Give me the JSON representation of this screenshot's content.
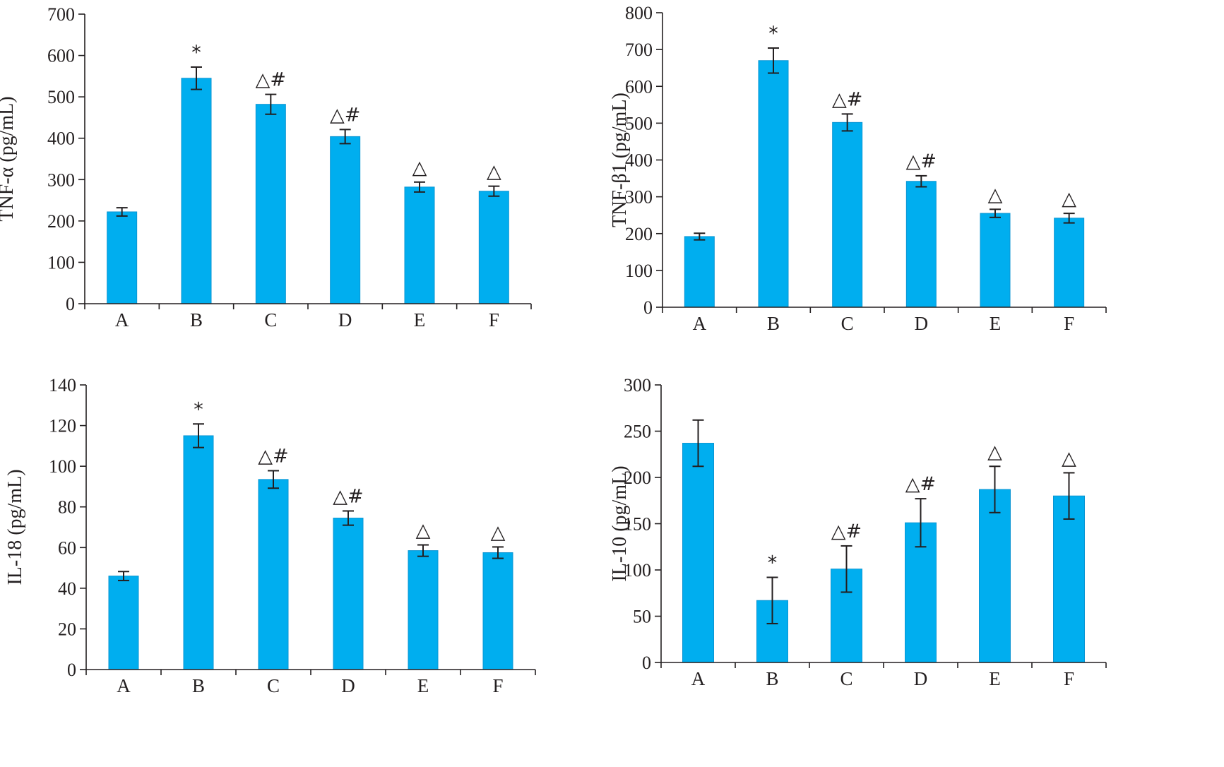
{
  "colors": {
    "bar": "#00aeef",
    "axis": "#231f20"
  },
  "chart_data": [
    {
      "type": "bar",
      "ylabel": "TNF-α (pg/mL)",
      "categories": [
        "A",
        "B",
        "C",
        "D",
        "E",
        "F"
      ],
      "values": [
        222,
        545,
        482,
        404,
        282,
        272
      ],
      "errors": [
        10,
        27,
        24,
        17,
        12,
        12
      ],
      "annotations": [
        "",
        "*",
        "△#",
        "△#",
        "△",
        "△"
      ],
      "ylim": [
        0,
        700
      ],
      "yticks": [
        0,
        100,
        200,
        300,
        400,
        500,
        600,
        700
      ],
      "grid": false,
      "legend": "none"
    },
    {
      "type": "bar",
      "ylabel": "TNF-β1 (pg/mL)",
      "categories": [
        "A",
        "B",
        "C",
        "D",
        "E",
        "F"
      ],
      "values": [
        192,
        670,
        502,
        342,
        255,
        242
      ],
      "errors": [
        9,
        34,
        23,
        15,
        11,
        13
      ],
      "annotations": [
        "",
        "*",
        "△#",
        "△#",
        "△",
        "△"
      ],
      "ylim": [
        0,
        800
      ],
      "yticks": [
        0,
        100,
        200,
        300,
        400,
        500,
        600,
        700,
        800
      ],
      "grid": false,
      "legend": "none"
    },
    {
      "type": "bar",
      "ylabel": "IL-18 (pg/mL)",
      "categories": [
        "A",
        "B",
        "C",
        "D",
        "E",
        "F"
      ],
      "values": [
        46,
        115,
        93.5,
        74.5,
        58.5,
        57.5
      ],
      "errors": [
        2.2,
        5.8,
        4.3,
        3.5,
        2.8,
        2.8
      ],
      "annotations": [
        "",
        "*",
        "△#",
        "△#",
        "△",
        "△"
      ],
      "ylim": [
        0,
        140
      ],
      "yticks": [
        0,
        20,
        40,
        60,
        80,
        100,
        120,
        140
      ],
      "grid": false,
      "legend": "none"
    },
    {
      "type": "bar",
      "ylabel": "IL-10 (pg/mL)",
      "categories": [
        "A",
        "B",
        "C",
        "D",
        "E",
        "F"
      ],
      "values": [
        237,
        67,
        101,
        151,
        187,
        180
      ],
      "errors": [
        25,
        25,
        25,
        26,
        25,
        25
      ],
      "annotations": [
        "",
        "*",
        "△#",
        "△#",
        "△",
        "△"
      ],
      "ylim": [
        0,
        300
      ],
      "yticks": [
        0,
        50,
        100,
        150,
        200,
        250,
        300
      ],
      "grid": false,
      "legend": "none"
    }
  ]
}
